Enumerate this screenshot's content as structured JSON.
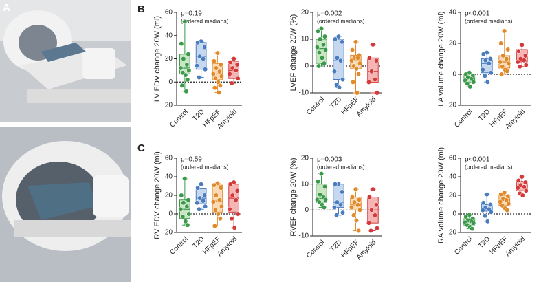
{
  "panel_labels": [
    "A",
    "B",
    "C"
  ],
  "chart_data": [
    {
      "type": "box",
      "ylabel": "LV EDV change 20W (ml)",
      "annotations": [
        "p=0.19",
        "(ordered medians)"
      ],
      "categories": [
        "Control",
        "T2D",
        "HFpEF",
        "Amyloid"
      ],
      "ylim": [
        -20,
        60
      ],
      "yticks": [
        -20,
        0,
        20,
        40,
        60
      ],
      "reference_line": 0,
      "groups": [
        {
          "color": "#3a9a4a",
          "fill": "#c9e6c2",
          "min": -8,
          "q1": 7,
          "median": 12,
          "q3": 24,
          "max": 52,
          "points": [
            52,
            33,
            24,
            20,
            15,
            12,
            10,
            8,
            6,
            2,
            -3,
            -8
          ]
        },
        {
          "color": "#4a7cc0",
          "fill": "#c6d8ef",
          "min": 4,
          "q1": 11,
          "median": 22,
          "q3": 34,
          "max": 35,
          "points": [
            35,
            34,
            30,
            22,
            20,
            14,
            11,
            4
          ]
        },
        {
          "color": "#e08a2a",
          "fill": "#fbd9b5",
          "min": -9,
          "q1": 2,
          "median": 7,
          "q3": 16,
          "max": 25,
          "points": [
            25,
            18,
            15,
            12,
            9,
            7,
            5,
            3,
            0,
            -3,
            -5,
            -9
          ]
        },
        {
          "color": "#d43a3a",
          "fill": "#f5b5b5",
          "min": -1,
          "q1": 3,
          "median": 10,
          "q3": 18,
          "max": 20,
          "points": [
            20,
            17,
            15,
            12,
            10,
            7,
            3,
            -1
          ]
        }
      ]
    },
    {
      "type": "box",
      "ylabel": "LVEF change 20W (%)",
      "annotations": [
        "p=0.002",
        "(ordered medians)"
      ],
      "categories": [
        "Control",
        "T2D",
        "HFpEF",
        "Amyloid"
      ],
      "ylim": [
        -10,
        20
      ],
      "yticks": [
        -10,
        0,
        10,
        20
      ],
      "reference_line": 0,
      "groups": [
        {
          "color": "#3a9a4a",
          "fill": "#c9e6c2",
          "min": 0,
          "q1": 1,
          "median": 6.5,
          "q3": 10,
          "max": 14,
          "points": [
            14,
            13,
            11,
            10,
            8,
            7,
            6,
            5,
            3,
            1,
            0
          ]
        },
        {
          "color": "#4a7cc0",
          "fill": "#c6d8ef",
          "min": -8,
          "q1": -5,
          "median": 2,
          "q3": 10,
          "max": 11,
          "points": [
            11,
            10,
            9,
            3,
            2,
            -2,
            -5,
            -7,
            -8
          ]
        },
        {
          "color": "#e08a2a",
          "fill": "#fbd9b5",
          "min": -10,
          "q1": -1,
          "median": 2,
          "q3": 4,
          "max": 9,
          "points": [
            9,
            6,
            4,
            3,
            3,
            2,
            1,
            0,
            -1,
            -3,
            -6,
            -10
          ]
        },
        {
          "color": "#d43a3a",
          "fill": "#f5b5b5",
          "min": -10,
          "q1": -6,
          "median": -2,
          "q3": 3,
          "max": 8,
          "points": [
            8,
            3,
            2,
            -2,
            -5,
            -6,
            -10
          ]
        }
      ]
    },
    {
      "type": "box",
      "ylabel": "LA volume change 20W (ml)",
      "annotations": [
        "p<0.001",
        "(ordered medians)"
      ],
      "categories": [
        "Control",
        "T2D",
        "HFpEF",
        "Amyloid"
      ],
      "ylim": [
        -20,
        40
      ],
      "yticks": [
        -20,
        0,
        20,
        40
      ],
      "reference_line": 0,
      "groups": [
        {
          "color": "#3a9a4a",
          "fill": "#c9e6c2",
          "min": -8,
          "q1": -5,
          "median": -3,
          "q3": 0,
          "max": 1,
          "points": [
            1,
            0,
            -1,
            -2,
            -3,
            -4,
            -5,
            -6,
            -8
          ]
        },
        {
          "color": "#4a7cc0",
          "fill": "#c6d8ef",
          "min": -5,
          "q1": 1,
          "median": 7,
          "q3": 10,
          "max": 14,
          "points": [
            14,
            13,
            10,
            9,
            7,
            3,
            1,
            -1,
            -5
          ]
        },
        {
          "color": "#e08a2a",
          "fill": "#fbd9b5",
          "min": 0,
          "q1": 4,
          "median": 8,
          "q3": 12,
          "max": 28,
          "points": [
            28,
            20,
            16,
            12,
            10,
            8,
            7,
            5,
            3,
            2,
            0
          ]
        },
        {
          "color": "#d43a3a",
          "fill": "#f5b5b5",
          "min": 5,
          "q1": 8,
          "median": 9,
          "q3": 16,
          "max": 19,
          "points": [
            19,
            15,
            12,
            10,
            9,
            8,
            6,
            5
          ]
        }
      ]
    },
    {
      "type": "box",
      "ylabel": "RV EDV change 20W (ml)",
      "annotations": [
        "p=0.59",
        "(ordered medians)"
      ],
      "categories": [
        "Control",
        "T2D",
        "HFpEF",
        "Amyloid"
      ],
      "ylim": [
        -20,
        60
      ],
      "yticks": [
        -20,
        0,
        20,
        40,
        60
      ],
      "reference_line": 0,
      "groups": [
        {
          "color": "#3a9a4a",
          "fill": "#c9e6c2",
          "min": -12,
          "q1": -5,
          "median": 5,
          "q3": 15,
          "max": 38,
          "points": [
            38,
            20,
            15,
            12,
            8,
            5,
            0,
            -3,
            -8,
            -12
          ]
        },
        {
          "color": "#4a7cc0",
          "fill": "#c6d8ef",
          "min": 5,
          "q1": 11,
          "median": 17,
          "q3": 27,
          "max": 32,
          "points": [
            32,
            28,
            20,
            17,
            14,
            12,
            8,
            5
          ]
        },
        {
          "color": "#e08a2a",
          "fill": "#fbd9b5",
          "min": -13,
          "q1": 2,
          "median": 14,
          "q3": 31,
          "max": 33,
          "points": [
            33,
            31,
            28,
            20,
            15,
            13,
            8,
            4,
            0,
            -5,
            -13
          ]
        },
        {
          "color": "#d43a3a",
          "fill": "#f5b5b5",
          "min": -15,
          "q1": 2,
          "median": 17,
          "q3": 32,
          "max": 34,
          "points": [
            34,
            32,
            25,
            20,
            15,
            5,
            0,
            -5,
            -15
          ]
        }
      ]
    },
    {
      "type": "box",
      "ylabel": "RVEF change 20W (%)",
      "annotations": [
        "p=0.003",
        "(ordered medians)"
      ],
      "categories": [
        "Control",
        "T2D",
        "HFpEF",
        "Amyloid"
      ],
      "ylim": [
        -10,
        20
      ],
      "yticks": [
        -10,
        0,
        10,
        20
      ],
      "reference_line": 0,
      "groups": [
        {
          "color": "#3a9a4a",
          "fill": "#c9e6c2",
          "min": 1,
          "q1": 3,
          "median": 4.5,
          "q3": 10,
          "max": 14,
          "points": [
            14,
            11,
            9,
            6,
            5,
            4,
            4,
            3,
            2,
            1
          ]
        },
        {
          "color": "#4a7cc0",
          "fill": "#c6d8ef",
          "min": -2,
          "q1": 1,
          "median": 3,
          "q3": 10,
          "max": 10,
          "points": [
            10,
            10,
            7,
            3,
            2,
            1,
            -1,
            -2
          ]
        },
        {
          "color": "#e08a2a",
          "fill": "#fbd9b5",
          "min": -8,
          "q1": 0,
          "median": 2,
          "q3": 5,
          "max": 8,
          "points": [
            8,
            5,
            4,
            3,
            2,
            1,
            0,
            -2,
            -4,
            -8
          ]
        },
        {
          "color": "#d43a3a",
          "fill": "#f5b5b5",
          "min": -8,
          "q1": -5,
          "median": 0,
          "q3": 5,
          "max": 8,
          "points": [
            8,
            5,
            2,
            0,
            -2,
            -5,
            -7,
            -8
          ]
        }
      ]
    },
    {
      "type": "box",
      "ylabel": "RA volume change 20W (ml)",
      "annotations": [
        "p<0.001",
        "(ordered medians)"
      ],
      "categories": [
        "Control",
        "T2D",
        "HFpEF",
        "Amyloid"
      ],
      "ylim": [
        -20,
        60
      ],
      "yticks": [
        -20,
        0,
        20,
        40,
        60
      ],
      "reference_line": 0,
      "groups": [
        {
          "color": "#3a9a4a",
          "fill": "#c9e6c2",
          "min": -16,
          "q1": -12,
          "median": -9,
          "q3": -5,
          "max": -1,
          "points": [
            -1,
            -3,
            -5,
            -7,
            -8,
            -9,
            -10,
            -12,
            -14,
            -16
          ]
        },
        {
          "color": "#4a7cc0",
          "fill": "#c6d8ef",
          "min": -8,
          "q1": 3,
          "median": 5,
          "q3": 10,
          "max": 21,
          "points": [
            21,
            12,
            10,
            7,
            5,
            4,
            2,
            -2,
            -8
          ]
        },
        {
          "color": "#e08a2a",
          "fill": "#fbd9b5",
          "min": 4,
          "q1": 9,
          "median": 15,
          "q3": 20,
          "max": 23,
          "points": [
            23,
            21,
            19,
            16,
            15,
            13,
            11,
            9,
            6,
            4
          ]
        },
        {
          "color": "#d43a3a",
          "fill": "#f5b5b5",
          "min": 20,
          "q1": 25,
          "median": 30,
          "q3": 35,
          "max": 40,
          "points": [
            40,
            36,
            34,
            31,
            29,
            28,
            25,
            22,
            20
          ]
        }
      ]
    }
  ]
}
